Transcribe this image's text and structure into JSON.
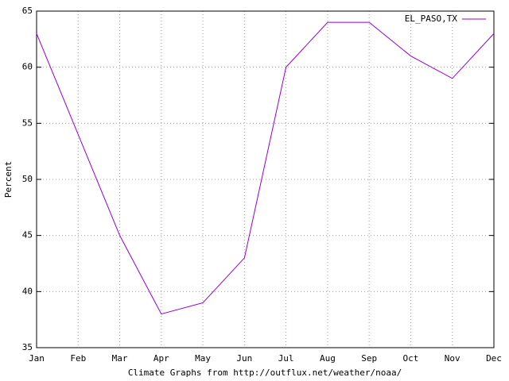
{
  "chart_data": {
    "type": "line",
    "categories": [
      "Jan",
      "Feb",
      "Mar",
      "Apr",
      "May",
      "Jun",
      "Jul",
      "Aug",
      "Sep",
      "Oct",
      "Nov",
      "Dec"
    ],
    "series": [
      {
        "name": "EL_PASO,TX",
        "color": "#9400d3",
        "values": [
          63,
          54,
          45,
          38,
          39,
          43,
          60,
          64,
          64,
          61,
          59,
          63
        ]
      }
    ],
    "ylim": [
      35,
      65
    ],
    "yticks": [
      35,
      40,
      45,
      50,
      55,
      60,
      65
    ],
    "y_label": "Percent",
    "x_label": "Climate Graphs from http://outflux.net/weather/noaa/",
    "grid": true,
    "legend": "top-right"
  }
}
